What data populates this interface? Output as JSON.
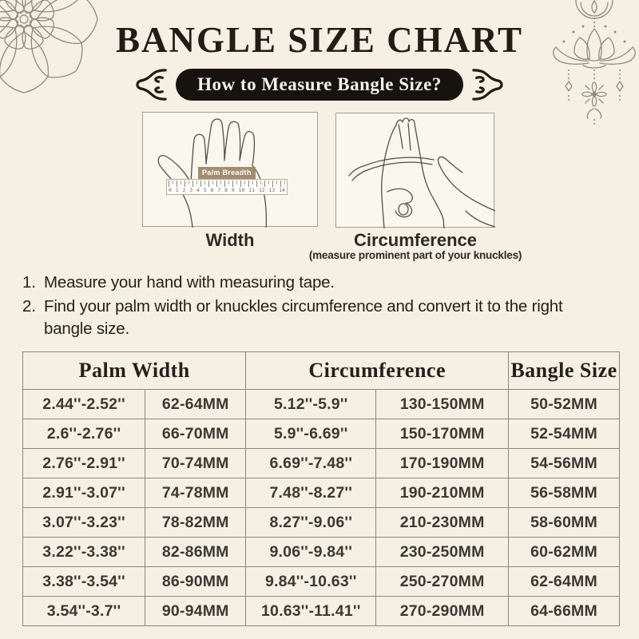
{
  "theme": {
    "bg": "#f5f0e3",
    "ink": "#201d16",
    "pill_bg": "#16130e",
    "pill_text": "#f7f3e8",
    "line_art": "#8f8b80",
    "hand_line": "#55514a",
    "box_border": "#a39f93",
    "box_bg": "#faf7ec",
    "tan": "#a28d6e",
    "table_border": "#8b8779",
    "table_text": "#3a3933",
    "caption": "#2b2a25"
  },
  "page": {
    "title": "BANGLE SIZE CHART"
  },
  "banner": {
    "label": "How to Measure Bangle Size?"
  },
  "ornaments": {
    "top_left": "mandala-flower-ornament",
    "top_right": "lotus-pendant-ornament",
    "banner_sides": "curly-flourish-ornament"
  },
  "figures": {
    "width": {
      "caption": "Width",
      "ruler_label": "Palm Breadth",
      "ruler_numbers": "0 1 2 3 4 5 6 7 8 9 10 11 12 13 14"
    },
    "circumference": {
      "caption": "Circumference",
      "subcaption": "(measure prominent part of your knuckles)"
    }
  },
  "instructions": [
    {
      "no": "1.",
      "text": "Measure your hand with measuring tape."
    },
    {
      "no": "2.",
      "text": "Find your palm width or knuckles circumference and convert it to the right bangle size."
    }
  ],
  "table": {
    "headers": [
      "Palm Width",
      "Circumference",
      "Bangle Size"
    ],
    "rows": [
      [
        "2.44''-2.52''",
        "62-64MM",
        "5.12''-5.9''",
        "130-150MM",
        "50-52MM"
      ],
      [
        "2.6''-2.76''",
        "66-70MM",
        "5.9''-6.69''",
        "150-170MM",
        "52-54MM"
      ],
      [
        "2.76''-2.91''",
        "70-74MM",
        "6.69''-7.48''",
        "170-190MM",
        "54-56MM"
      ],
      [
        "2.91''-3.07''",
        "74-78MM",
        "7.48''-8.27''",
        "190-210MM",
        "56-58MM"
      ],
      [
        "3.07''-3.23''",
        "78-82MM",
        "8.27''-9.06''",
        "210-230MM",
        "58-60MM"
      ],
      [
        "3.22''-3.38''",
        "82-86MM",
        "9.06''-9.84''",
        "230-250MM",
        "60-62MM"
      ],
      [
        "3.38''-3.54''",
        "86-90MM",
        "9.84''-10.63''",
        "250-270MM",
        "62-64MM"
      ],
      [
        "3.54''-3.7''",
        "90-94MM",
        "10.63''-11.41''",
        "270-290MM",
        "64-66MM"
      ]
    ]
  },
  "chart_data": {
    "type": "table",
    "title": "BANGLE SIZE CHART",
    "columns": [
      "Palm Width (inches)",
      "Palm Width (mm)",
      "Circumference (inches)",
      "Circumference (mm)",
      "Bangle Size (mm)"
    ],
    "rows": [
      [
        "2.44''-2.52''",
        "62-64MM",
        "5.12''-5.9''",
        "130-150MM",
        "50-52MM"
      ],
      [
        "2.6''-2.76''",
        "66-70MM",
        "5.9''-6.69''",
        "150-170MM",
        "52-54MM"
      ],
      [
        "2.76''-2.91''",
        "70-74MM",
        "6.69''-7.48''",
        "170-190MM",
        "54-56MM"
      ],
      [
        "2.91''-3.07''",
        "74-78MM",
        "7.48''-8.27''",
        "190-210MM",
        "56-58MM"
      ],
      [
        "3.07''-3.23''",
        "78-82MM",
        "8.27''-9.06''",
        "210-230MM",
        "58-60MM"
      ],
      [
        "3.22''-3.38''",
        "82-86MM",
        "9.06''-9.84''",
        "230-250MM",
        "60-62MM"
      ],
      [
        "3.38''-3.54''",
        "86-90MM",
        "9.84''-10.63''",
        "250-270MM",
        "62-64MM"
      ],
      [
        "3.54''-3.7''",
        "90-94MM",
        "10.63''-11.41''",
        "270-290MM",
        "64-66MM"
      ]
    ]
  }
}
